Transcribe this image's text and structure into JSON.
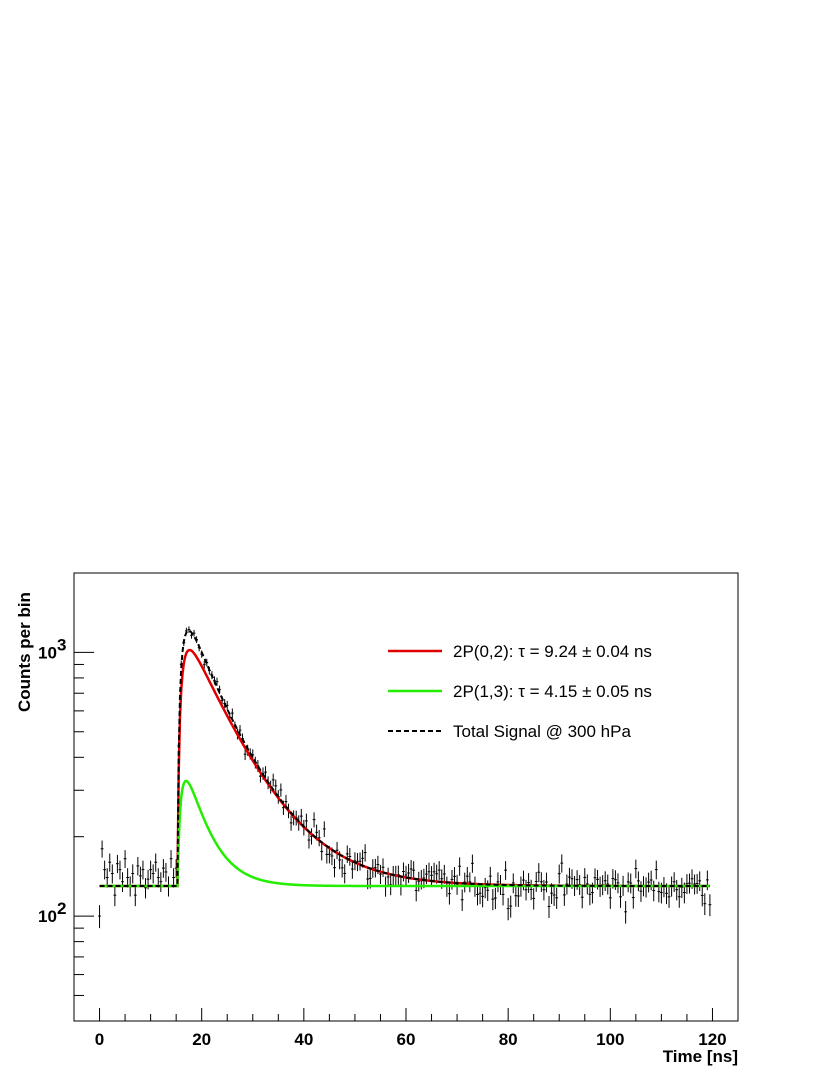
{
  "chart_data": {
    "type": "line",
    "title": "",
    "xlabel": "Time [ns]",
    "ylabel": "Counts per bin",
    "xlim": [
      -5,
      125
    ],
    "ylim": [
      40,
      2000
    ],
    "yscale": "log",
    "grid": false,
    "legend_position": "top-right",
    "x_ticks": [
      0,
      20,
      40,
      60,
      80,
      100,
      120
    ],
    "y_ticks": [
      {
        "value": 100,
        "label": "10",
        "exp": "2"
      },
      {
        "value": 1000,
        "label": "10",
        "exp": "3"
      }
    ],
    "model": {
      "background": 130,
      "onset_ns": 15.3,
      "rise_ns": 1.0
    },
    "series": [
      {
        "name": "2P(0,2): τ = 9.24 ± 0.04 ns",
        "color": "#e00000",
        "style": "solid",
        "amplitude": 1270,
        "tau_ns": 9.24
      },
      {
        "name": "2P(1,3): τ = 4.15 ± 0.05 ns",
        "color": "#22ee00",
        "style": "solid",
        "amplitude": 360,
        "tau_ns": 4.15
      },
      {
        "name": "Total Signal @ 300 hPa",
        "color": "#000000",
        "style": "dashed"
      }
    ],
    "data_points": {
      "name": "measured",
      "x_start": 0,
      "x_step": 0.5,
      "x_end": 119.5,
      "y": [
        100,
        180,
        150,
        140,
        160,
        145,
        120,
        158,
        150,
        135,
        165,
        140,
        130,
        145,
        120,
        155,
        142,
        150,
        128,
        138,
        150,
        145,
        160,
        140,
        135,
        152,
        147,
        130,
        165,
        140,
        152
      ]
    }
  }
}
